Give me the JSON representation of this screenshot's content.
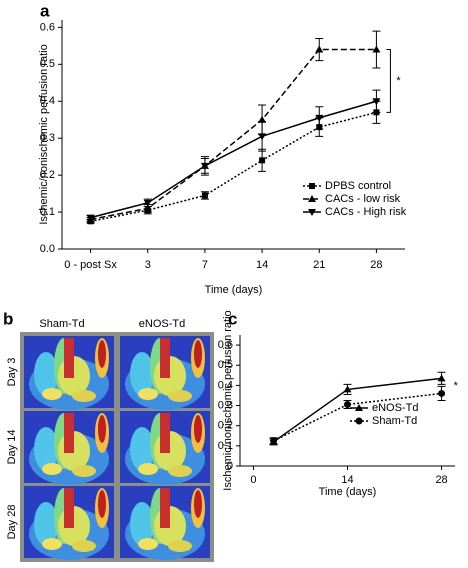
{
  "chart_data": [
    {
      "type": "line",
      "panel_label": "a",
      "x_label": "Time (days)",
      "y_label": "Ischemic/nonischemic perfusion ratio",
      "categories": [
        "0 - post Sx",
        "3",
        "7",
        "14",
        "21",
        "28"
      ],
      "ylim": [
        0,
        0.62
      ],
      "yticks": [
        {
          "value": 0,
          "label": "0.0"
        },
        0.1,
        0.2,
        0.3,
        0.4,
        0.5,
        0.6
      ],
      "grid": false,
      "legend": "lower right",
      "annotation": "*",
      "series": [
        {
          "name": "DPBS control",
          "color": "#000000",
          "linestyle": "dotted",
          "marker": "square",
          "values": [
            0.075,
            0.105,
            0.145,
            0.24,
            0.33,
            0.37
          ],
          "errors": [
            0.005,
            0.01,
            0.01,
            0.03,
            0.025,
            0.03
          ]
        },
        {
          "name": "CACs - low risk",
          "color": "#000000",
          "linestyle": "dashed",
          "marker": "triangle-up",
          "values": [
            0.08,
            0.11,
            0.225,
            0.35,
            0.54,
            0.54
          ],
          "errors": [
            0.005,
            0.01,
            0.02,
            0.04,
            0.03,
            0.05
          ]
        },
        {
          "name": "CACs - High risk",
          "color": "#000000",
          "linestyle": "solid",
          "marker": "triangle-down",
          "values": [
            0.085,
            0.125,
            0.225,
            0.305,
            0.355,
            0.4
          ],
          "errors": [
            0.005,
            0.01,
            0.025,
            0.04,
            0.03,
            0.03
          ]
        }
      ]
    },
    {
      "type": "line",
      "panel_label": "c",
      "x_label": "Time (days)",
      "y_label": "Ischemic/nonischemic perfusion ratio",
      "xlim": [
        -2,
        30
      ],
      "xticks": [
        0,
        14,
        28
      ],
      "ylim": [
        0,
        0.65
      ],
      "yticks": [
        0,
        0.1,
        0.2,
        0.3,
        0.4,
        0.5,
        0.6
      ],
      "grid": false,
      "legend": "lower right",
      "annotation": "*",
      "series": [
        {
          "name": "eNOS-Td",
          "color": "#000000",
          "linestyle": "solid",
          "marker": "triangle-up",
          "x": [
            3,
            14,
            28
          ],
          "values": [
            0.12,
            0.38,
            0.435
          ],
          "errors": [
            0.015,
            0.025,
            0.03
          ]
        },
        {
          "name": "Sham-Td",
          "color": "#000000",
          "linestyle": "dotted",
          "marker": "circle",
          "x": [
            3,
            14,
            28
          ],
          "values": [
            0.125,
            0.305,
            0.36
          ],
          "errors": [
            0.015,
            0.02,
            0.035
          ]
        }
      ]
    }
  ],
  "image_panel": {
    "panel_label": "b",
    "columns": [
      "Sham-Td",
      "eNOS-Td"
    ],
    "rows": [
      "Day 3",
      "Day 14",
      "Day 28"
    ]
  }
}
